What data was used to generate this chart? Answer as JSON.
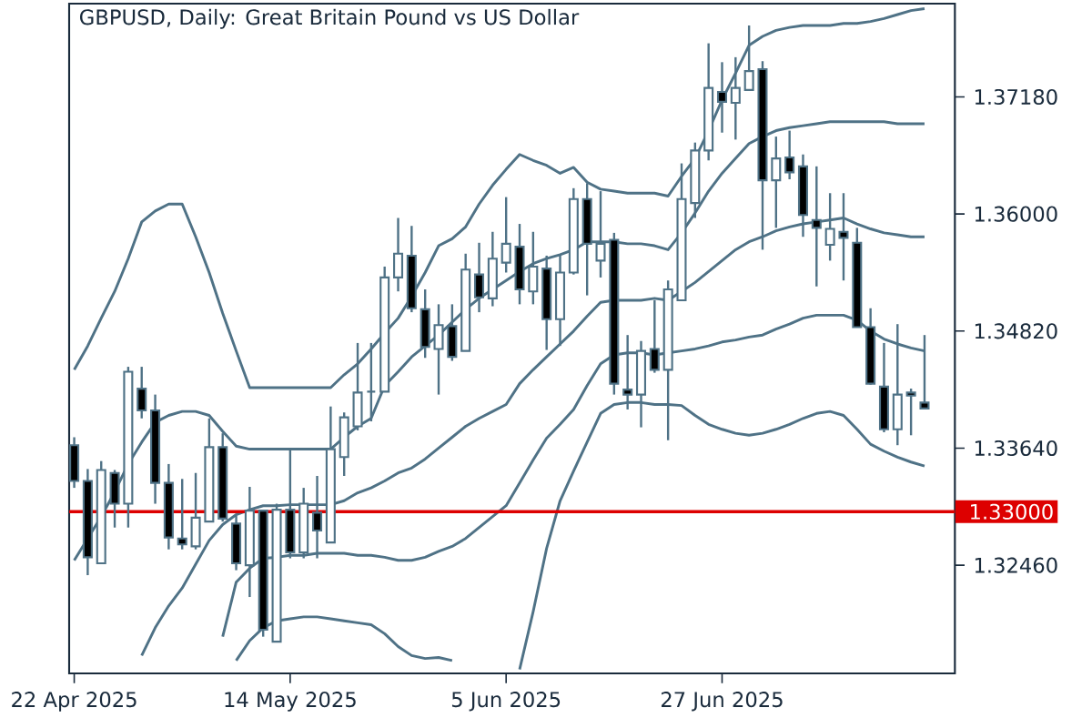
{
  "chart_data": {
    "type": "candlestick",
    "title": "GBPUSD, Daily:  Great Britain Pound vs US Dollar",
    "categories": [
      "22 Apr 2025",
      null,
      null,
      null,
      null,
      null,
      null,
      null,
      null,
      null,
      null,
      null,
      null,
      null,
      null,
      null,
      "14 May 2025",
      null,
      null,
      null,
      null,
      null,
      null,
      null,
      null,
      null,
      null,
      null,
      null,
      null,
      null,
      null,
      "5 Jun 2025",
      null,
      null,
      null,
      null,
      null,
      null,
      null,
      null,
      null,
      null,
      null,
      null,
      null,
      null,
      null,
      "27 Jun 2025",
      null,
      null,
      null,
      null,
      null,
      null,
      null,
      null,
      null,
      null,
      null,
      null,
      null,
      null,
      null
    ],
    "ohlc": [
      [
        1.3367,
        1.3375,
        1.3324,
        1.3331
      ],
      [
        1.3331,
        1.3343,
        1.3236,
        1.3254
      ],
      [
        1.3248,
        1.3351,
        1.3248,
        1.3342
      ],
      [
        1.3339,
        1.3342,
        1.3284,
        1.3308
      ],
      [
        1.3308,
        1.3446,
        1.3284,
        1.3441
      ],
      [
        1.3424,
        1.3446,
        1.3394,
        1.3402
      ],
      [
        1.3402,
        1.3418,
        1.3308,
        1.3329
      ],
      [
        1.3329,
        1.3348,
        1.3262,
        1.3274
      ],
      [
        1.3273,
        1.3333,
        1.3262,
        1.3267
      ],
      [
        1.3265,
        1.3339,
        1.3262,
        1.3294
      ],
      [
        1.329,
        1.3394,
        1.329,
        1.3365
      ],
      [
        1.3365,
        1.3379,
        1.329,
        1.3293
      ],
      [
        1.3288,
        1.3296,
        1.3241,
        1.3248
      ],
      [
        1.3246,
        1.3325,
        1.3214,
        1.3301
      ],
      [
        1.3301,
        1.3301,
        1.3174,
        1.3181
      ],
      [
        1.3169,
        1.3308,
        1.3169,
        1.3302
      ],
      [
        1.3302,
        1.3363,
        1.3253,
        1.3259
      ],
      [
        1.3259,
        1.3324,
        1.3253,
        1.3308
      ],
      [
        1.3299,
        1.3336,
        1.3253,
        1.3281
      ],
      [
        1.3269,
        1.3406,
        1.3269,
        1.3363
      ],
      [
        1.3355,
        1.34,
        1.3336,
        1.3395
      ],
      [
        1.3386,
        1.347,
        1.3382,
        1.342
      ],
      [
        1.3421,
        1.347,
        1.3391,
        1.3421
      ],
      [
        1.3421,
        1.3547,
        1.3421,
        1.3536
      ],
      [
        1.3536,
        1.3596,
        1.3522,
        1.356
      ],
      [
        1.3558,
        1.3588,
        1.3501,
        1.3505
      ],
      [
        1.3504,
        1.3524,
        1.3455,
        1.3466
      ],
      [
        1.3464,
        1.3509,
        1.3418,
        1.3488
      ],
      [
        1.3487,
        1.3509,
        1.3452,
        1.3456
      ],
      [
        1.3462,
        1.356,
        1.3462,
        1.3544
      ],
      [
        1.3539,
        1.3571,
        1.3501,
        1.3516
      ],
      [
        1.3515,
        1.3582,
        1.3507,
        1.3555
      ],
      [
        1.3551,
        1.3617,
        1.3541,
        1.357
      ],
      [
        1.3567,
        1.359,
        1.3509,
        1.3524
      ],
      [
        1.3522,
        1.3582,
        1.3509,
        1.3547
      ],
      [
        1.3545,
        1.3558,
        1.3463,
        1.3494
      ],
      [
        1.3494,
        1.3558,
        1.3467,
        1.3541
      ],
      [
        1.3541,
        1.3626,
        1.3539,
        1.3615
      ],
      [
        1.3615,
        1.3631,
        1.3518,
        1.357
      ],
      [
        1.3553,
        1.3623,
        1.3536,
        1.357
      ],
      [
        1.3574,
        1.3581,
        1.3418,
        1.3429
      ],
      [
        1.3423,
        1.3478,
        1.3403,
        1.3418
      ],
      [
        1.3418,
        1.3472,
        1.3385,
        1.3462
      ],
      [
        1.3464,
        1.3513,
        1.344,
        1.3443
      ],
      [
        1.3443,
        1.3533,
        1.3372,
        1.3524
      ],
      [
        1.3513,
        1.3651,
        1.3513,
        1.3615
      ],
      [
        1.3611,
        1.3672,
        1.3596,
        1.3664
      ],
      [
        1.3664,
        1.3772,
        1.3654,
        1.3727
      ],
      [
        1.3723,
        1.3753,
        1.3682,
        1.3713
      ],
      [
        1.3712,
        1.3758,
        1.3675,
        1.3727
      ],
      [
        1.3725,
        1.379,
        1.3724,
        1.3744
      ],
      [
        1.3746,
        1.3754,
        1.3564,
        1.3634
      ],
      [
        1.3634,
        1.3678,
        1.3586,
        1.3656
      ],
      [
        1.3657,
        1.3684,
        1.3635,
        1.3642
      ],
      [
        1.3648,
        1.366,
        1.3577,
        1.3599
      ],
      [
        1.3594,
        1.3648,
        1.3527,
        1.3586
      ],
      [
        1.3569,
        1.3621,
        1.3553,
        1.3585
      ],
      [
        1.3582,
        1.3621,
        1.3533,
        1.3576
      ],
      [
        1.3571,
        1.3586,
        1.3486,
        1.3486
      ],
      [
        1.3486,
        1.3505,
        1.3428,
        1.3429
      ],
      [
        1.3426,
        1.347,
        1.338,
        1.3383
      ],
      [
        1.3383,
        1.3489,
        1.3367,
        1.3418
      ],
      [
        1.342,
        1.3424,
        1.3377,
        1.3417
      ],
      [
        1.341,
        1.3478,
        1.3404,
        1.3404
      ]
    ],
    "series": [
      {
        "type": "line",
        "color": "#4f7286",
        "values": [
          1.3443,
          1.3467,
          1.3495,
          1.3522,
          1.3555,
          1.3592,
          1.3603,
          1.361,
          1.361,
          1.3577,
          1.3541,
          1.35,
          1.3462,
          1.3425,
          1.3425,
          1.3425,
          1.3425,
          1.3425,
          1.3425,
          1.3425,
          1.3438,
          1.3449,
          1.3464,
          1.348,
          1.3495,
          1.3517,
          1.3541,
          1.3568,
          1.3575,
          1.3587,
          1.361,
          1.3629,
          1.3645,
          1.366,
          1.3654,
          1.3649,
          1.3641,
          1.3647,
          1.3632,
          1.3625,
          1.3623,
          1.3621,
          1.3621,
          1.3621,
          1.3618,
          1.3638,
          1.3656,
          1.3684,
          1.3715,
          1.3742,
          1.377,
          1.3779,
          1.3785,
          1.3788,
          1.379,
          1.379,
          1.379,
          1.3792,
          1.3792,
          1.3794,
          1.3797,
          1.3801,
          1.3805,
          1.3807
        ]
      },
      {
        "type": "line",
        "color": "#4f7286",
        "values": [
          1.3251,
          1.3273,
          1.3295,
          1.332,
          1.3348,
          1.337,
          1.339,
          1.3397,
          1.3401,
          1.3401,
          1.3397,
          1.3381,
          1.3366,
          1.3363,
          1.3363,
          1.3363,
          1.3363,
          1.3363,
          1.3363,
          1.3363,
          1.3375,
          1.3386,
          1.3394,
          1.3427,
          1.3441,
          1.3456,
          1.3467,
          1.3478,
          1.3491,
          1.3504,
          1.3515,
          1.3524,
          1.3533,
          1.3542,
          1.355,
          1.3555,
          1.3559,
          1.3564,
          1.3572,
          1.3572,
          1.3572,
          1.357,
          1.357,
          1.3568,
          1.3564,
          1.3581,
          1.3601,
          1.3623,
          1.3641,
          1.3656,
          1.3671,
          1.3678,
          1.3684,
          1.3687,
          1.3689,
          1.3691,
          1.3693,
          1.3693,
          1.3693,
          1.3693,
          1.3693,
          1.3691,
          1.3691,
          1.3691
        ]
      },
      {
        "type": "line",
        "color": "#4f7286",
        "values": [
          null,
          null,
          null,
          null,
          null,
          1.3155,
          1.3183,
          1.3205,
          1.3223,
          1.3247,
          1.3271,
          1.3287,
          1.3297,
          1.3302,
          1.3306,
          1.3306,
          1.3307,
          1.3307,
          1.3307,
          1.3307,
          1.3311,
          1.3319,
          1.3324,
          1.3331,
          1.3339,
          1.3344,
          1.3353,
          1.3364,
          1.3375,
          1.3386,
          1.3394,
          1.3401,
          1.3408,
          1.3429,
          1.3443,
          1.3456,
          1.3469,
          1.3482,
          1.3497,
          1.3511,
          1.3513,
          1.3513,
          1.3513,
          1.3515,
          1.3513,
          1.3522,
          1.3531,
          1.3542,
          1.3553,
          1.3564,
          1.3572,
          1.3577,
          1.3583,
          1.3587,
          1.359,
          1.3592,
          1.3594,
          1.3596,
          1.359,
          1.3585,
          1.3581,
          1.3579,
          1.3577,
          1.3577
        ]
      },
      {
        "type": "line",
        "color": "#4f7286",
        "values": [
          null,
          null,
          null,
          null,
          null,
          null,
          null,
          null,
          null,
          null,
          null,
          1.3174,
          1.3229,
          1.3243,
          1.3253,
          1.3254,
          1.3256,
          1.3256,
          1.3258,
          1.3258,
          1.3258,
          1.3256,
          1.3256,
          1.3254,
          1.3251,
          1.3251,
          1.3254,
          1.326,
          1.3265,
          1.3273,
          1.3284,
          1.3295,
          1.3306,
          1.3329,
          1.3352,
          1.3374,
          1.3388,
          1.3403,
          1.3427,
          1.3449,
          1.3458,
          1.346,
          1.346,
          1.3458,
          1.346,
          1.3462,
          1.3464,
          1.3467,
          1.3471,
          1.3473,
          1.3476,
          1.3478,
          1.3484,
          1.3489,
          1.3495,
          1.3498,
          1.3498,
          1.3498,
          1.3493,
          1.3482,
          1.3474,
          1.3469,
          1.3465,
          1.3462
        ]
      },
      {
        "type": "line",
        "color": "#4f7286",
        "values": [
          null,
          null,
          null,
          null,
          null,
          null,
          null,
          null,
          null,
          null,
          null,
          null,
          1.315,
          1.317,
          1.3183,
          1.319,
          1.3192,
          1.3194,
          1.3194,
          1.3192,
          1.319,
          1.3188,
          1.3186,
          1.3177,
          1.3164,
          1.3155,
          1.3152,
          1.3153,
          1.315,
          null,
          null,
          null,
          null,
          1.3141,
          1.3199,
          1.3263,
          1.3311,
          1.3341,
          1.337,
          1.3399,
          1.3408,
          1.341,
          1.341,
          1.3408,
          1.3408,
          1.3407,
          1.3397,
          1.3388,
          1.3383,
          1.3379,
          1.3377,
          1.3379,
          1.3383,
          1.3388,
          1.3394,
          1.3399,
          1.3401,
          1.3397,
          1.3383,
          1.3368,
          1.3361,
          1.3355,
          1.335,
          1.3346
        ]
      }
    ],
    "ylim": [
      1.3137,
      1.3812
    ],
    "yticks": [
      {
        "value": 1.3246,
        "label": "1.32460"
      },
      {
        "value": 1.3364,
        "label": "1.33640"
      },
      {
        "value": 1.3482,
        "label": "1.34820"
      },
      {
        "value": 1.36,
        "label": "1.36000"
      },
      {
        "value": 1.3718,
        "label": "1.37180"
      }
    ],
    "ref_lines": [
      {
        "axis": "y",
        "value": 1.33,
        "label": "1.33000",
        "color": "#dd0000"
      }
    ]
  }
}
